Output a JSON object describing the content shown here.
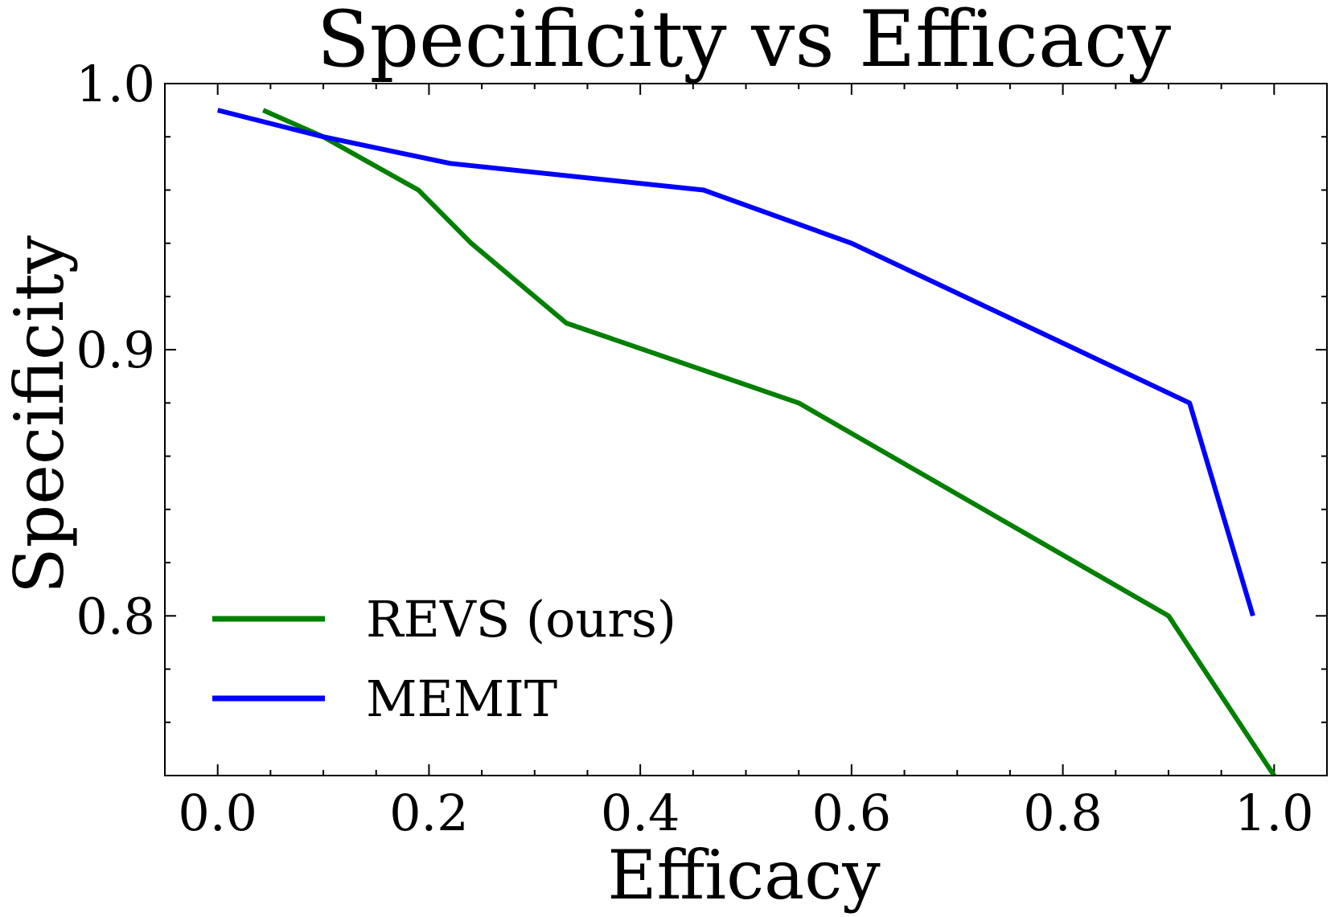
{
  "chart_data": {
    "type": "line",
    "title": "Specificity vs Efficacy",
    "xlabel": "Efficacy",
    "ylabel": "Specificity",
    "xlim": [
      -0.05,
      1.05
    ],
    "ylim": [
      0.74,
      1.0
    ],
    "xticks": [
      0.0,
      0.2,
      0.4,
      0.6,
      0.8,
      1.0
    ],
    "xtick_labels": [
      "0.0",
      "0.2",
      "0.4",
      "0.6",
      "0.8",
      "1.0"
    ],
    "yticks": [
      0.8,
      0.9,
      1.0
    ],
    "ytick_labels": [
      "0.8",
      "0.9",
      "1.0"
    ],
    "x_minor_step": 0.05,
    "y_minor_step": 0.02,
    "legend_position": "lower-left",
    "series": [
      {
        "name": "REVS (ours)",
        "color": "#008000",
        "x": [
          0.043,
          0.1,
          0.19,
          0.24,
          0.33,
          0.55,
          0.9,
          1.0
        ],
        "y": [
          0.99,
          0.98,
          0.96,
          0.94,
          0.91,
          0.88,
          0.8,
          0.74
        ]
      },
      {
        "name": "MEMIT",
        "color": "#0000FF",
        "x": [
          0.0,
          0.1,
          0.22,
          0.46,
          0.6,
          0.92,
          0.98
        ],
        "y": [
          0.99,
          0.98,
          0.97,
          0.96,
          0.94,
          0.88,
          0.8
        ]
      }
    ]
  }
}
